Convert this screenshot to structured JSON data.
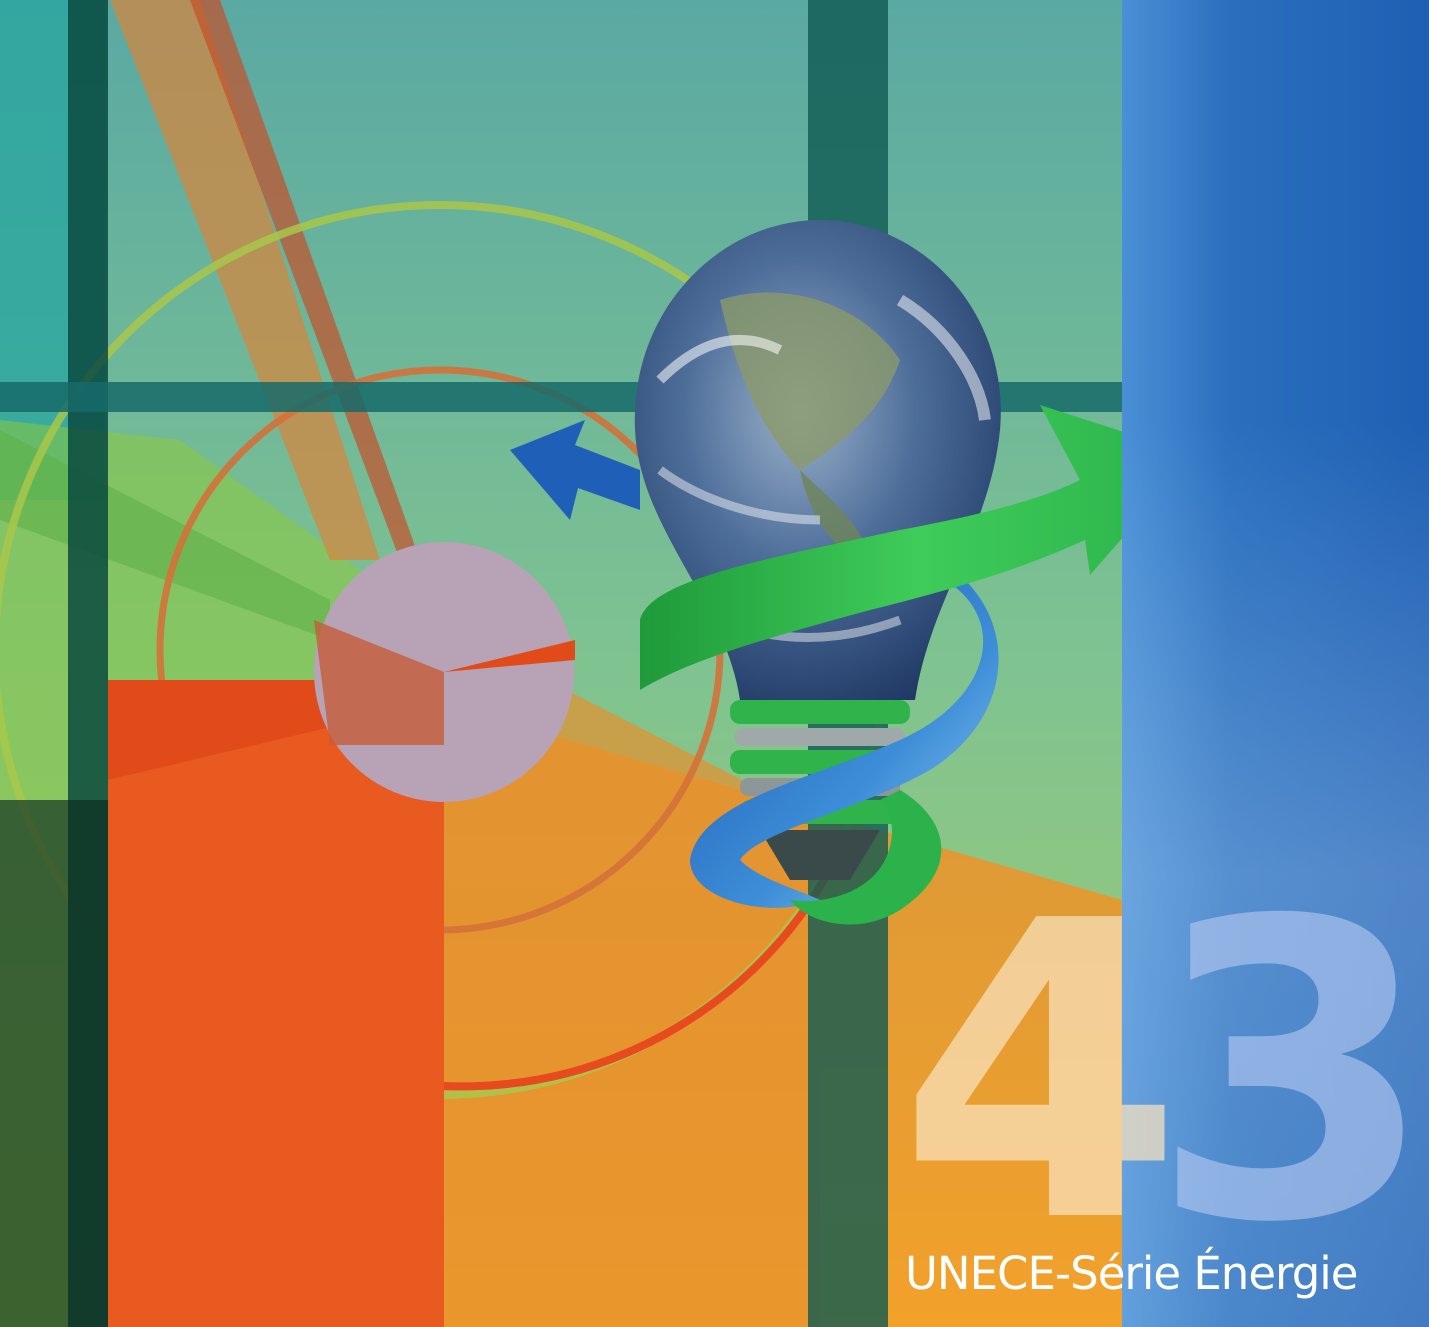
{
  "cover": {
    "number_first": "4",
    "number_second": "3",
    "series": "UNECE-Série Énergie"
  },
  "colors": {
    "orange_block": "#e85a20",
    "blue_panel": "#2266bb",
    "green_arrow": "#2ebb4a",
    "blue_arrow": "#1f5fb8",
    "disc": "#b7a3b5"
  },
  "icons": [
    "earth-lightbulb-icon",
    "green-arrow-icon",
    "blue-arrow-icon"
  ]
}
